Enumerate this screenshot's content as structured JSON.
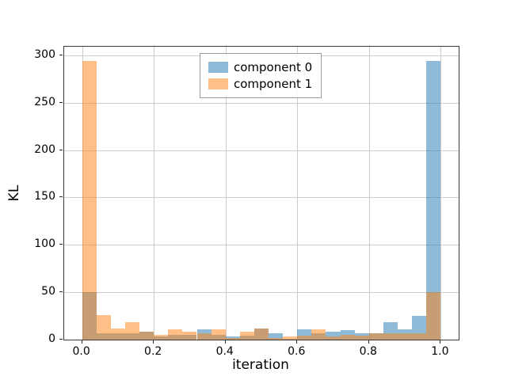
{
  "figure": {
    "xlabel": "iteration",
    "ylabel": "KL",
    "background": "#ffffff",
    "grid_color": "#cdcdcd",
    "spine_color": "#3a3a3a"
  },
  "axes": {
    "x_ticks": [
      {
        "value": 0.0,
        "label": "0.0"
      },
      {
        "value": 0.2,
        "label": "0.2"
      },
      {
        "value": 0.4,
        "label": "0.4"
      },
      {
        "value": 0.6,
        "label": "0.6"
      },
      {
        "value": 0.8,
        "label": "0.8"
      },
      {
        "value": 1.0,
        "label": "1.0"
      }
    ],
    "y_ticks": [
      {
        "value": 0,
        "label": "0"
      },
      {
        "value": 50,
        "label": "50"
      },
      {
        "value": 100,
        "label": "100"
      },
      {
        "value": 150,
        "label": "150"
      },
      {
        "value": 200,
        "label": "200"
      },
      {
        "value": 250,
        "label": "250"
      },
      {
        "value": 300,
        "label": "300"
      }
    ],
    "xlim": [
      -0.05,
      1.05
    ],
    "ylim": [
      0,
      309
    ]
  },
  "legend": {
    "position": "upper center",
    "items": [
      {
        "label": "component 0",
        "color": "#1f77b4"
      },
      {
        "label": "component 1",
        "color": "#ff7f0e"
      }
    ]
  },
  "chart_data": {
    "type": "bar",
    "subtype": "overlapping-histogram",
    "title": "",
    "xlabel": "iteration",
    "ylabel": "KL",
    "grid": true,
    "legend_position": "upper center",
    "bin_start": 0.0,
    "bin_width": 0.04,
    "bin_count": 25,
    "alpha": 0.5,
    "xlim": [
      -0.05,
      1.05
    ],
    "ylim": [
      0,
      309
    ],
    "series": [
      {
        "name": "component 0",
        "color": "#1f77b4",
        "values": [
          50,
          7,
          7,
          7,
          8,
          3,
          5,
          5,
          11,
          5,
          3,
          4,
          12,
          7,
          1,
          11,
          7,
          8,
          10,
          7,
          7,
          18,
          11,
          25,
          294
        ]
      },
      {
        "name": "component 1",
        "color": "#ff7f0e",
        "values": [
          294,
          26,
          12,
          18,
          8,
          5,
          11,
          8,
          7,
          11,
          2,
          8,
          12,
          2,
          3,
          4,
          11,
          3,
          5,
          4,
          7,
          7,
          7,
          7,
          50
        ]
      }
    ]
  }
}
